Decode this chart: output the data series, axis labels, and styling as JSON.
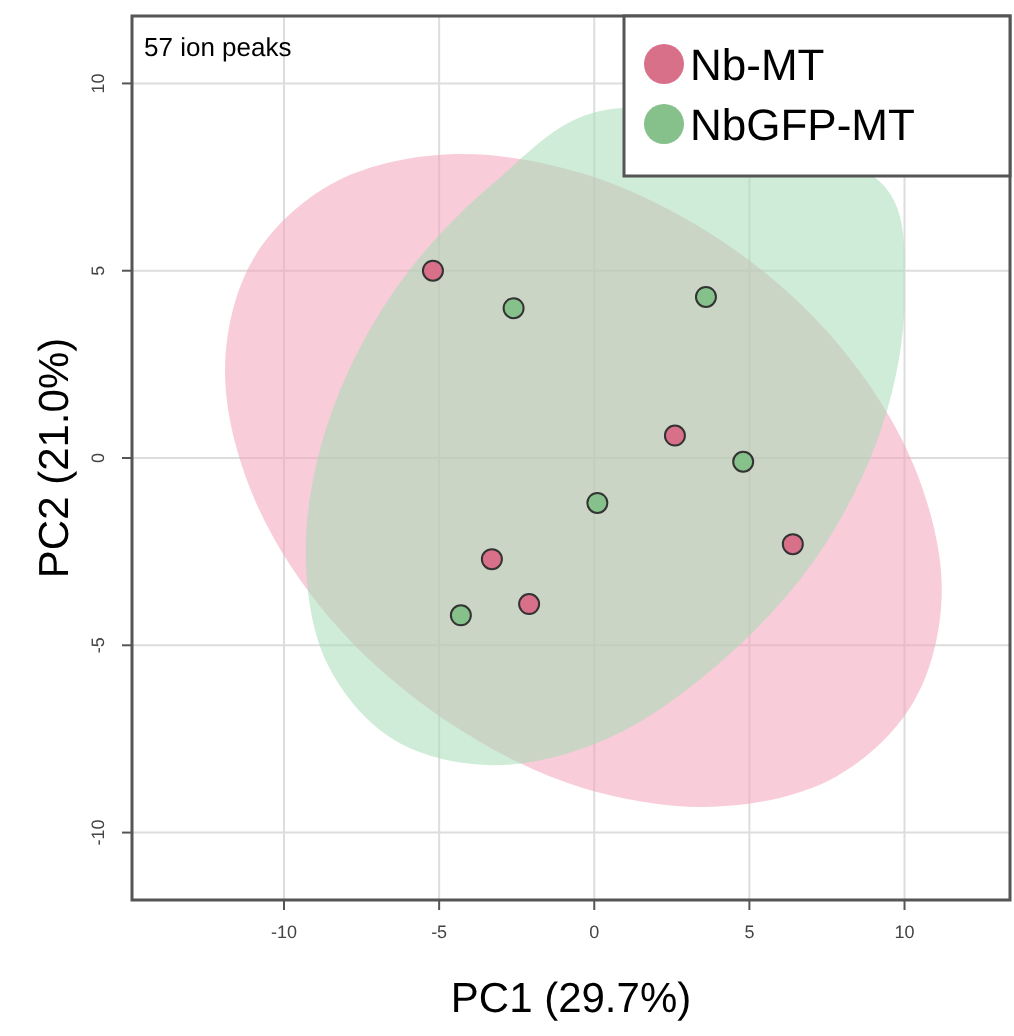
{
  "chart_data": {
    "type": "scatter",
    "xlabel": "PC1 (29.7%)",
    "ylabel": "PC2 (21.0%)",
    "annotations": [
      "57 ion peaks"
    ],
    "xlim": [
      -14.9,
      13.4
    ],
    "ylim": [
      -11.8,
      11.8
    ],
    "xticks": [
      -10,
      -5,
      0,
      5,
      10
    ],
    "yticks": [
      -10,
      -5,
      0,
      5,
      10
    ],
    "grid": true,
    "legend": "top right",
    "marker": "circle",
    "series": [
      {
        "type": "area",
        "marker": "none",
        "color": "#f2a3b8",
        "x": [
          11.2,
          10.3,
          7.8,
          4.1,
          -0.4,
          -4.8,
          -8.5,
          -11.0,
          -11.9,
          -11.0,
          -8.5,
          -4.8,
          -0.4,
          4.1,
          7.8,
          10.3
        ],
        "values": [
          -3.6,
          -0.2,
          3.1,
          5.8,
          7.6,
          8.1,
          7.3,
          5.3,
          2.4,
          -1.0,
          -4.3,
          -7.0,
          -8.8,
          -9.3,
          -8.5,
          -6.5
        ]
      },
      {
        "type": "area",
        "marker": "none",
        "color": "#a6dcb6",
        "x": [
          10.0,
          9.3,
          7.2,
          4.0,
          0.4,
          -3.3,
          -6.5,
          -8.6,
          -9.3,
          -8.6,
          -6.5,
          -3.3,
          0.4,
          4.0,
          7.2,
          9.3
        ],
        "values": [
          4.4,
          7.3,
          null,
          null,
          9.3,
          7.3,
          4.4,
          0.9,
          -2.6,
          -5.5,
          -7.5,
          -8.2,
          -7.5,
          -5.5,
          -2.6,
          0.9
        ]
      },
      {
        "name": "Nb-MT",
        "color": "#d9708a",
        "x": [
          -5.2,
          -3.3,
          -2.1,
          6.4,
          2.6
        ],
        "values": [
          5.0,
          -2.7,
          -3.9,
          -2.3,
          0.6
        ]
      },
      {
        "name": "NbGFP-MT",
        "color": "#86c08a",
        "x": [
          -2.6,
          3.6,
          4.8,
          0.1,
          -4.3
        ],
        "values": [
          4.0,
          4.3,
          -0.1,
          -1.2,
          -4.2
        ]
      }
    ]
  }
}
